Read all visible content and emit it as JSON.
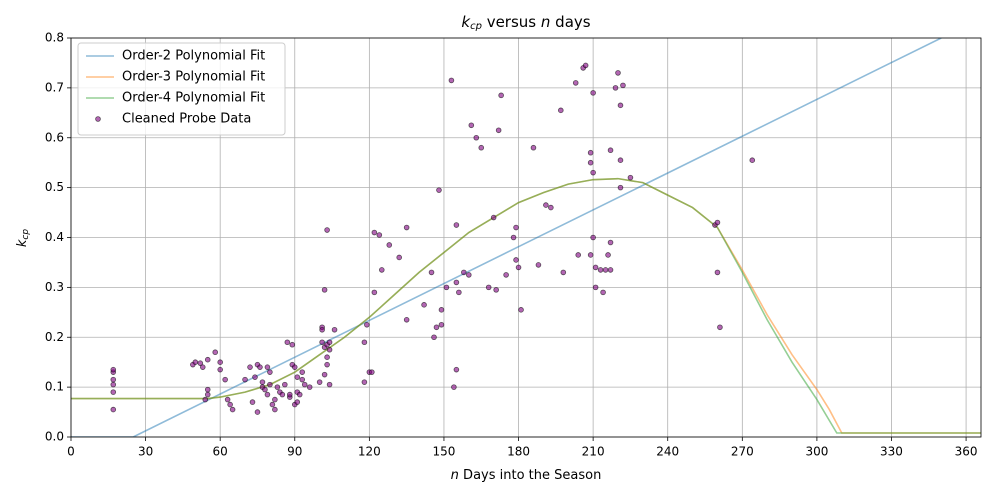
{
  "chart_data": {
    "type": "line",
    "title_parts": [
      "k",
      "cp",
      " versus ",
      "n",
      " days"
    ],
    "xlabel_parts": [
      "n",
      " Days into the Season"
    ],
    "ylabel_parts": [
      "k",
      "cp"
    ],
    "xlim": [
      0,
      366
    ],
    "ylim": [
      0,
      0.8
    ],
    "xticks": [
      0,
      30,
      60,
      90,
      120,
      150,
      180,
      210,
      240,
      270,
      300,
      330,
      360
    ],
    "yticks": [
      {
        "value": 0,
        "label": "0.0"
      },
      0.1,
      0.2,
      0.3,
      0.4,
      0.5,
      0.6,
      0.7,
      0.8
    ],
    "grid": true,
    "legend": "upper left",
    "series": [
      {
        "name": "Order-2 Polynomial Fit",
        "type": "line",
        "color": "#1f77b4",
        "x": [
          0,
          25,
          350
        ],
        "values": [
          0,
          0,
          0.8
        ]
      },
      {
        "name": "Order-3 Polynomial Fit",
        "type": "line",
        "color": "#ff7f0e",
        "x": [
          0,
          55,
          60,
          70,
          80,
          90,
          100,
          110,
          120,
          130,
          140,
          150,
          160,
          170,
          180,
          190,
          200,
          210,
          220,
          230,
          240,
          250,
          260,
          270,
          280,
          290,
          300,
          305,
          310,
          366
        ],
        "values": [
          0.077,
          0.077,
          0.08,
          0.09,
          0.105,
          0.13,
          0.165,
          0.2,
          0.24,
          0.285,
          0.33,
          0.37,
          0.41,
          0.44,
          0.47,
          0.49,
          0.507,
          0.516,
          0.518,
          0.51,
          0.485,
          0.46,
          0.42,
          0.335,
          0.245,
          0.165,
          0.095,
          0.055,
          0.008,
          0.008
        ]
      },
      {
        "name": "Order-4 Polynomial Fit",
        "type": "line",
        "color": "#2ca02c",
        "x": [
          0,
          55,
          60,
          70,
          80,
          90,
          100,
          110,
          120,
          130,
          140,
          150,
          160,
          170,
          180,
          190,
          200,
          210,
          220,
          230,
          240,
          250,
          260,
          270,
          280,
          290,
          300,
          308,
          366
        ],
        "values": [
          0.077,
          0.077,
          0.08,
          0.09,
          0.105,
          0.13,
          0.165,
          0.2,
          0.24,
          0.285,
          0.33,
          0.37,
          0.41,
          0.44,
          0.47,
          0.49,
          0.507,
          0.516,
          0.518,
          0.51,
          0.485,
          0.46,
          0.42,
          0.33,
          0.235,
          0.15,
          0.075,
          0.008,
          0.008
        ]
      },
      {
        "name": "Cleaned Probe Data",
        "type": "scatter",
        "color": "#800080",
        "x": [
          17,
          17,
          17,
          17,
          17,
          17,
          49,
          50,
          52,
          53,
          54,
          55,
          55,
          55,
          58,
          60,
          60,
          62,
          63,
          64,
          65,
          70,
          72,
          73,
          74,
          75,
          75,
          76,
          77,
          77,
          78,
          79,
          79,
          80,
          80,
          81,
          82,
          82,
          83,
          84,
          85,
          86,
          87,
          88,
          88,
          89,
          89,
          90,
          90,
          91,
          91,
          91,
          92,
          93,
          93,
          94,
          96,
          100,
          101,
          101,
          101,
          102,
          102,
          102,
          103,
          103,
          103,
          103,
          104,
          104,
          104,
          106,
          118,
          118,
          119,
          120,
          121,
          122,
          122,
          124,
          125,
          128,
          132,
          135,
          135,
          142,
          145,
          146,
          147,
          148,
          149,
          149,
          151,
          153,
          154,
          155,
          155,
          155,
          156,
          158,
          160,
          161,
          163,
          165,
          168,
          170,
          171,
          172,
          173,
          175,
          178,
          179,
          179,
          180,
          181,
          186,
          188,
          191,
          193,
          197,
          198,
          203,
          204,
          206,
          207,
          209,
          209,
          209,
          210,
          210,
          210,
          211,
          211,
          213,
          214,
          215,
          216,
          217,
          217,
          217,
          219,
          220,
          221,
          221,
          221,
          222,
          225,
          259,
          260,
          260,
          261,
          274
        ],
        "values": [
          0.055,
          0.09,
          0.105,
          0.115,
          0.13,
          0.135,
          0.145,
          0.15,
          0.148,
          0.14,
          0.075,
          0.085,
          0.095,
          0.155,
          0.17,
          0.15,
          0.135,
          0.115,
          0.075,
          0.065,
          0.055,
          0.115,
          0.14,
          0.07,
          0.12,
          0.145,
          0.05,
          0.14,
          0.1,
          0.11,
          0.095,
          0.085,
          0.14,
          0.13,
          0.105,
          0.065,
          0.075,
          0.055,
          0.1,
          0.09,
          0.085,
          0.105,
          0.19,
          0.08,
          0.085,
          0.185,
          0.145,
          0.14,
          0.065,
          0.12,
          0.09,
          0.07,
          0.085,
          0.13,
          0.115,
          0.105,
          0.1,
          0.11,
          0.22,
          0.215,
          0.19,
          0.295,
          0.18,
          0.125,
          0.415,
          0.16,
          0.145,
          0.185,
          0.175,
          0.105,
          0.19,
          0.215,
          0.11,
          0.19,
          0.225,
          0.13,
          0.13,
          0.29,
          0.41,
          0.405,
          0.335,
          0.385,
          0.36,
          0.42,
          0.235,
          0.265,
          0.33,
          0.2,
          0.22,
          0.495,
          0.255,
          0.225,
          0.3,
          0.715,
          0.1,
          0.135,
          0.425,
          0.31,
          0.29,
          0.33,
          0.325,
          0.625,
          0.6,
          0.58,
          0.3,
          0.44,
          0.295,
          0.615,
          0.685,
          0.325,
          0.4,
          0.42,
          0.355,
          0.34,
          0.255,
          0.58,
          0.345,
          0.465,
          0.46,
          0.655,
          0.33,
          0.71,
          0.365,
          0.74,
          0.745,
          0.57,
          0.55,
          0.365,
          0.69,
          0.4,
          0.53,
          0.34,
          0.3,
          0.335,
          0.29,
          0.335,
          0.365,
          0.39,
          0.575,
          0.335,
          0.7,
          0.73,
          0.555,
          0.665,
          0.5,
          0.705,
          0.52,
          0.425,
          0.43,
          0.33,
          0.22,
          0.555
        ]
      }
    ]
  }
}
